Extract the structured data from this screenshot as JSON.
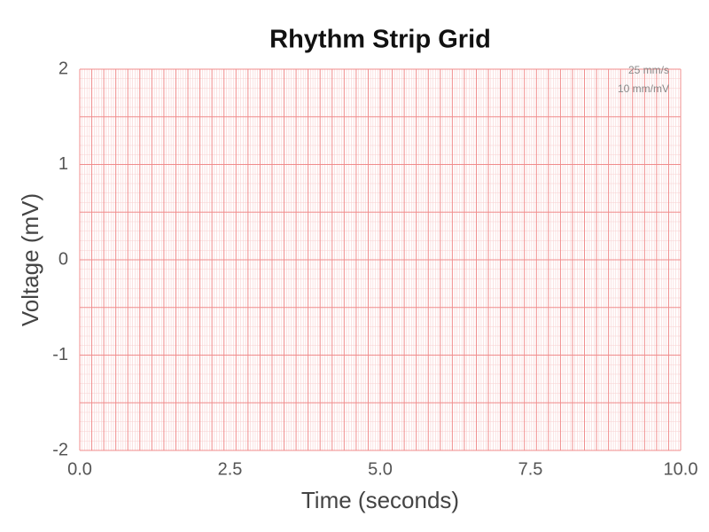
{
  "chart_data": {
    "type": "line",
    "title": "Rhythm Strip Grid",
    "xlabel": "Time (seconds)",
    "ylabel": "Voltage (mV)",
    "annotations": [
      "25 mm/s",
      "10 mm/mV"
    ],
    "xlim": [
      0,
      10
    ],
    "ylim": [
      -2,
      2
    ],
    "xticks": [
      {
        "value": 0,
        "label": "0.0"
      },
      {
        "value": 2.5,
        "label": "2.5"
      },
      {
        "value": 5,
        "label": "5.0"
      },
      {
        "value": 7.5,
        "label": "7.5"
      },
      {
        "value": 10,
        "label": "10.0"
      }
    ],
    "yticks": [
      -2,
      -1,
      0,
      1,
      2
    ],
    "grid": true,
    "major_grid": {
      "x_step": 0.2,
      "y_step": 0.5,
      "color": "#f08c8c"
    },
    "minor_grid": {
      "x_step": 0.04,
      "y_step": 0.1,
      "color": "#f8d0d0"
    }
  }
}
